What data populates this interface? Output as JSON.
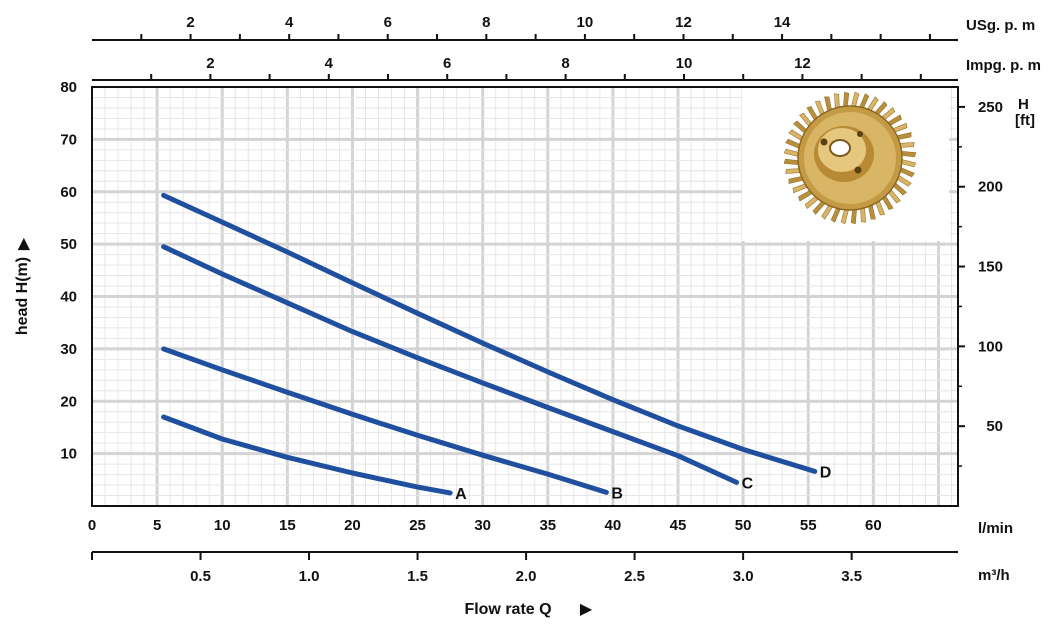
{
  "chart_data": {
    "type": "line",
    "ylabel": "head H(m)",
    "xlabel": "Flow rate Q",
    "y_left": {
      "ticks": [
        "10",
        "20",
        "30",
        "40",
        "50",
        "60",
        "70",
        "80"
      ],
      "ylim": [
        0,
        80
      ]
    },
    "y_right": {
      "unit_top": "H",
      "unit_bottom": "[ft]",
      "ticks": [
        "50",
        "100",
        "150",
        "200",
        "250"
      ]
    },
    "x_lmin": {
      "unit": "l/min",
      "ticks": [
        "0",
        "5",
        "10",
        "15",
        "20",
        "25",
        "30",
        "35",
        "40",
        "45",
        "50",
        "55",
        "60"
      ],
      "xlim": [
        0,
        66.5
      ]
    },
    "x_m3h": {
      "unit": "m³/h",
      "ticks": [
        "0.5",
        "1.0",
        "1.5",
        "2.0",
        "2.5",
        "3.0",
        "3.5"
      ]
    },
    "x_usgpm": {
      "unit": "USg. p. m",
      "ticks": [
        "2",
        "4",
        "6",
        "8",
        "10",
        "12",
        "14"
      ]
    },
    "x_impgpm": {
      "unit": "Impg. p. m",
      "ticks": [
        "2",
        "4",
        "6",
        "8",
        "10",
        "12"
      ]
    },
    "grid": true,
    "line_color": "#1f4f9e",
    "series": [
      {
        "name": "A",
        "x": [
          5.5,
          10,
          15,
          20,
          25,
          27.5
        ],
        "y": [
          17,
          12.8,
          9.3,
          6.3,
          3.6,
          2.5
        ]
      },
      {
        "name": "B",
        "x": [
          5.5,
          10,
          15,
          20,
          25,
          30,
          35,
          39.5
        ],
        "y": [
          30,
          26,
          21.7,
          17.5,
          13.5,
          9.7,
          6.1,
          2.6
        ]
      },
      {
        "name": "C",
        "x": [
          5.5,
          10,
          15,
          20,
          25,
          30,
          35,
          40,
          45,
          49.5
        ],
        "y": [
          49.5,
          44.3,
          38.8,
          33.3,
          28.3,
          23.5,
          18.8,
          14.2,
          9.6,
          4.5
        ]
      },
      {
        "name": "D",
        "x": [
          5.5,
          10,
          15,
          20,
          25,
          30,
          35,
          40,
          45,
          50,
          55.5
        ],
        "y": [
          59.3,
          54.2,
          48.5,
          42.6,
          36.8,
          31.1,
          25.6,
          20.3,
          15.3,
          10.8,
          6.6
        ]
      }
    ]
  }
}
